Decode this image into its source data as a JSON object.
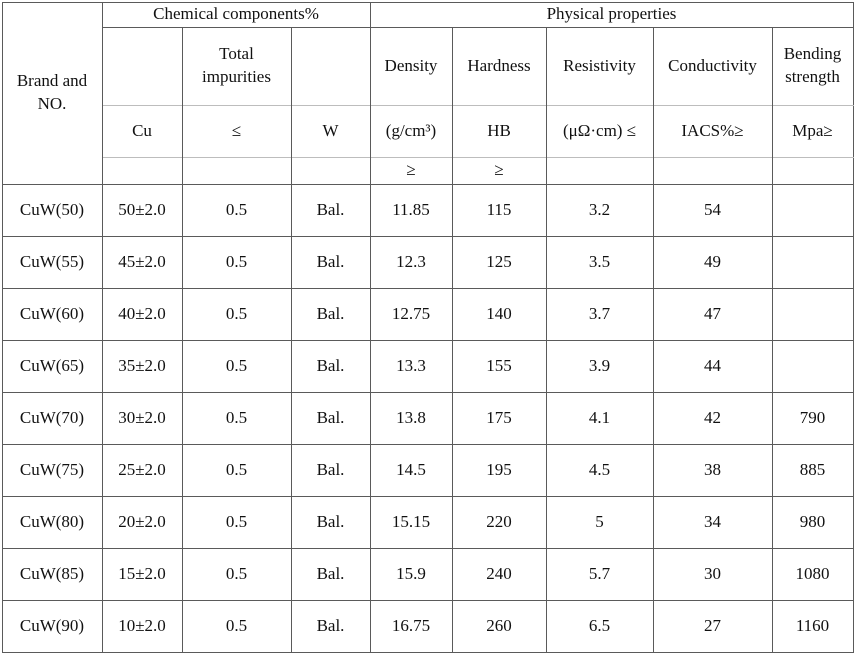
{
  "header": {
    "brand": "Brand and\nNO.",
    "chem": "Chemical components%",
    "phys": "Physical properties",
    "total_impurities": "Total\nimpurities",
    "density": "Density",
    "hardness": "Hardness",
    "resistivity": "Resistivity",
    "conductivity": "Conductivity",
    "bending": "Bending\nstrength",
    "cu": "Cu",
    "le": "≤",
    "w": "W",
    "density_unit": "(g/cm³)",
    "hb": "HB",
    "res_unit": "(μΩ·cm) ≤",
    "iacs": "IACS%≥",
    "mpa": "Mpa≥",
    "ge1": "≥",
    "ge2": "≥"
  },
  "rows": [
    {
      "brand": "CuW(50)",
      "cu": "50±2.0",
      "imp": "0.5",
      "w": "Bal.",
      "density": "11.85",
      "hardness": "115",
      "resistivity": "3.2",
      "conductivity": "54",
      "bending": ""
    },
    {
      "brand": "CuW(55)",
      "cu": "45±2.0",
      "imp": "0.5",
      "w": "Bal.",
      "density": "12.3",
      "hardness": "125",
      "resistivity": "3.5",
      "conductivity": "49",
      "bending": ""
    },
    {
      "brand": "CuW(60)",
      "cu": "40±2.0",
      "imp": "0.5",
      "w": "Bal.",
      "density": "12.75",
      "hardness": "140",
      "resistivity": "3.7",
      "conductivity": "47",
      "bending": ""
    },
    {
      "brand": "CuW(65)",
      "cu": "35±2.0",
      "imp": "0.5",
      "w": "Bal.",
      "density": "13.3",
      "hardness": "155",
      "resistivity": "3.9",
      "conductivity": "44",
      "bending": ""
    },
    {
      "brand": "CuW(70)",
      "cu": "30±2.0",
      "imp": "0.5",
      "w": "Bal.",
      "density": "13.8",
      "hardness": "175",
      "resistivity": "4.1",
      "conductivity": "42",
      "bending": "790"
    },
    {
      "brand": "CuW(75)",
      "cu": "25±2.0",
      "imp": "0.5",
      "w": "Bal.",
      "density": "14.5",
      "hardness": "195",
      "resistivity": "4.5",
      "conductivity": "38",
      "bending": "885"
    },
    {
      "brand": "CuW(80)",
      "cu": "20±2.0",
      "imp": "0.5",
      "w": "Bal.",
      "density": "15.15",
      "hardness": "220",
      "resistivity": "5",
      "conductivity": "34",
      "bending": "980"
    },
    {
      "brand": "CuW(85)",
      "cu": "15±2.0",
      "imp": "0.5",
      "w": "Bal.",
      "density": "15.9",
      "hardness": "240",
      "resistivity": "5.7",
      "conductivity": "30",
      "bending": "1080"
    },
    {
      "brand": "CuW(90)",
      "cu": "10±2.0",
      "imp": "0.5",
      "w": "Bal.",
      "density": "16.75",
      "hardness": "260",
      "resistivity": "6.5",
      "conductivity": "27",
      "bending": "1160"
    }
  ]
}
